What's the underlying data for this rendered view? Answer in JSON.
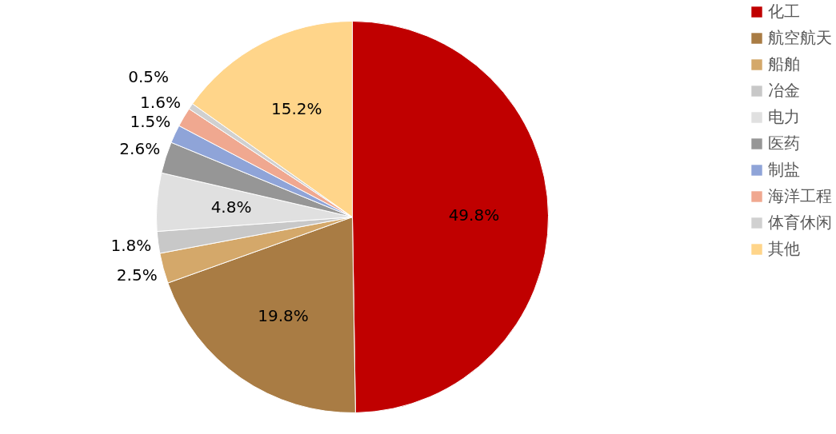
{
  "chart_data": {
    "type": "pie",
    "categories": [
      "化工",
      "航空航天",
      "船舶",
      "冶金",
      "电力",
      "医药",
      "制盐",
      "海洋工程",
      "体育休闲",
      "其他"
    ],
    "values": [
      49.8,
      19.8,
      2.5,
      1.8,
      4.8,
      2.6,
      1.5,
      1.6,
      0.5,
      15.2
    ],
    "colors": [
      "#c00000",
      "#a97c44",
      "#d4a86a",
      "#c8c8c8",
      "#e0e0e0",
      "#969696",
      "#8fa4d8",
      "#f0a890",
      "#d0d0d0",
      "#ffd58a"
    ],
    "value_labels": [
      "49.8%",
      "19.8%",
      "2.5%",
      "1.8%",
      "4.8%",
      "2.6%",
      "1.5%",
      "1.6%",
      "0.5%",
      "15.2%"
    ],
    "legend": "right"
  }
}
